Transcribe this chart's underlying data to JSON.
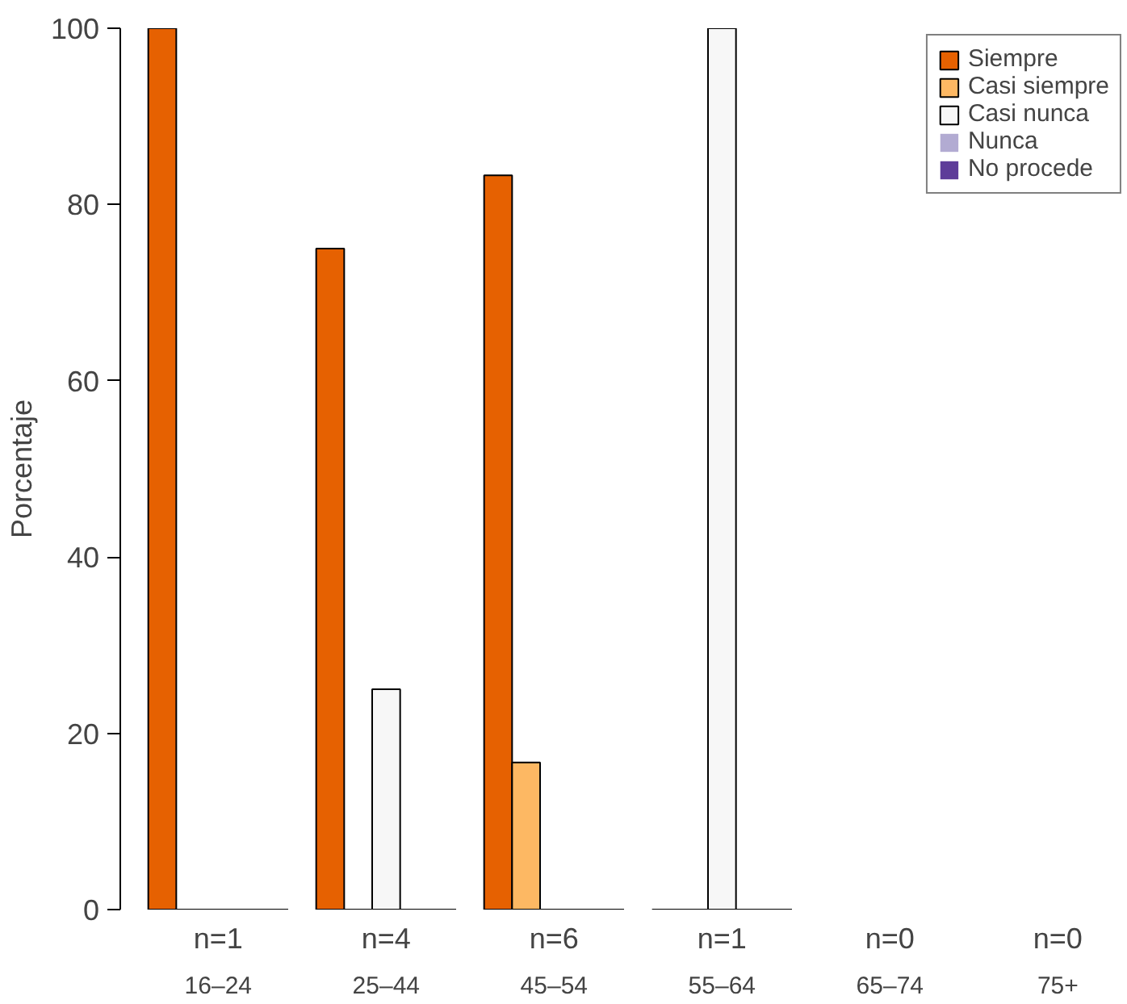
{
  "chart_data": {
    "type": "bar",
    "ylabel": "Porcentaje",
    "categories": [
      "16–24",
      "25–44",
      "45–54",
      "55–64",
      "65–74",
      "75+"
    ],
    "series": [
      {
        "name": "Siempre",
        "color": "#e66101",
        "values": [
          100,
          75,
          83.3,
          0,
          null,
          null
        ]
      },
      {
        "name": "Casi siempre",
        "color": "#fdb863",
        "values": [
          0,
          0,
          16.7,
          0,
          null,
          null
        ]
      },
      {
        "name": "Casi nunca",
        "color": "#f7f7f7",
        "values": [
          0,
          25,
          0,
          100,
          null,
          null
        ]
      },
      {
        "name": "Nunca",
        "color": "#b2abd2",
        "values": [
          0,
          0,
          0,
          0,
          null,
          null
        ]
      },
      {
        "name": "No procede",
        "color": "#5e3c99",
        "values": [
          0,
          0,
          0,
          0,
          null,
          null
        ]
      }
    ],
    "annotations": [
      "n=1",
      "n=4",
      "n=6",
      "n=1",
      "n=0",
      "n=0"
    ],
    "ylim": [
      0,
      100
    ],
    "yticks": [
      0,
      20,
      40,
      60,
      80,
      100
    ],
    "grid": false,
    "legend": "top right"
  }
}
